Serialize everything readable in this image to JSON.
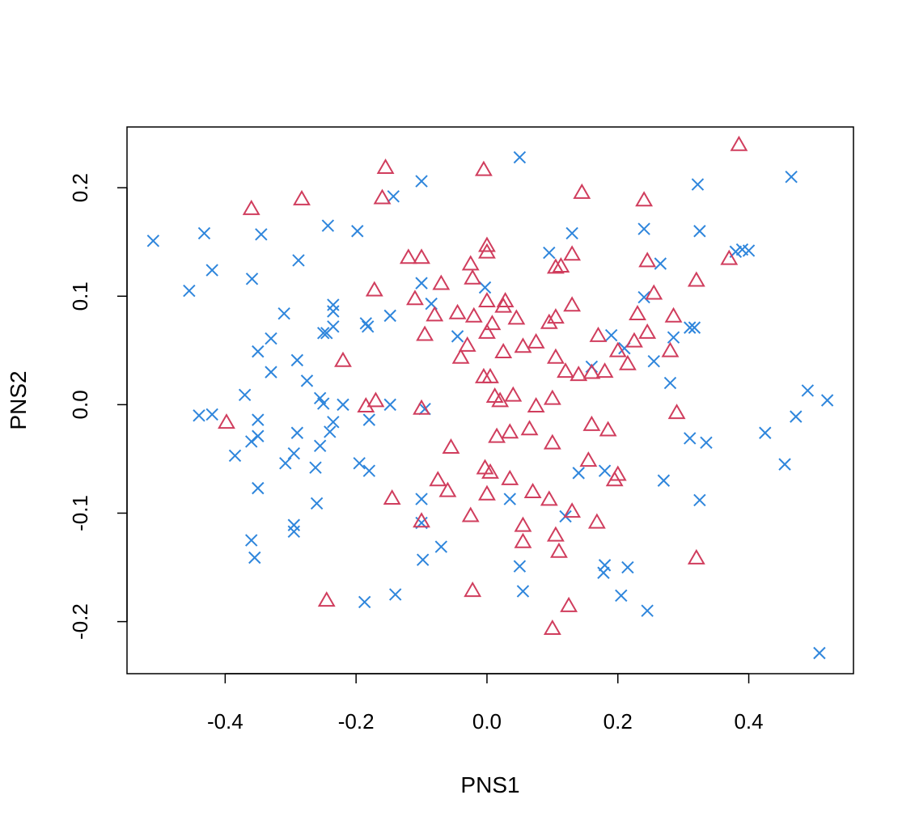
{
  "chart_data": {
    "type": "scatter",
    "title": "",
    "xlabel": "PNS1",
    "ylabel": "PNS2",
    "xlim": [
      -0.55,
      0.56
    ],
    "ylim": [
      -0.248,
      0.256
    ],
    "x_ticks": [
      -0.4,
      -0.2,
      0.0,
      0.2,
      0.4
    ],
    "x_tick_labels": [
      "-0.4",
      "-0.2",
      "0.0",
      "0.2",
      "0.4"
    ],
    "y_ticks": [
      -0.2,
      -0.1,
      0.0,
      0.1,
      0.2
    ],
    "y_tick_labels": [
      "-0.2",
      "-0.1",
      "0.0",
      "0.1",
      "0.2"
    ],
    "grid": false,
    "series": [
      {
        "marker": "x",
        "color": "#2f86dc",
        "points": [
          [
            -0.51,
            0.151
          ],
          [
            -0.455,
            0.105
          ],
          [
            -0.432,
            0.158
          ],
          [
            -0.42,
            0.124
          ],
          [
            -0.359,
            0.116
          ],
          [
            -0.345,
            0.157
          ],
          [
            -0.31,
            0.084
          ],
          [
            -0.288,
            0.133
          ],
          [
            -0.243,
            0.165
          ],
          [
            -0.235,
            0.092
          ],
          [
            -0.235,
            0.086
          ],
          [
            -0.198,
            0.16
          ],
          [
            -0.148,
            0.082
          ],
          [
            -0.143,
            0.192
          ],
          [
            -0.1,
            0.206
          ],
          [
            -0.1,
            0.112
          ],
          [
            -0.085,
            0.093
          ],
          [
            -0.045,
            0.063
          ],
          [
            -0.003,
            0.108
          ],
          [
            0.05,
            0.228
          ],
          [
            0.095,
            0.14
          ],
          [
            0.13,
            0.158
          ],
          [
            0.24,
            0.162
          ],
          [
            0.322,
            0.203
          ],
          [
            0.325,
            0.16
          ],
          [
            0.38,
            0.141
          ],
          [
            0.39,
            0.143
          ],
          [
            0.4,
            0.142
          ],
          [
            0.465,
            0.21
          ],
          [
            -0.245,
            0.066
          ],
          [
            -0.25,
            0.066
          ],
          [
            -0.235,
            0.072
          ],
          [
            -0.185,
            0.075
          ],
          [
            -0.182,
            0.072
          ],
          [
            -0.33,
            0.061
          ],
          [
            -0.35,
            0.049
          ],
          [
            -0.33,
            0.03
          ],
          [
            -0.29,
            0.041
          ],
          [
            -0.275,
            0.022
          ],
          [
            -0.37,
            0.009
          ],
          [
            -0.44,
            -0.01
          ],
          [
            -0.42,
            -0.009
          ],
          [
            -0.385,
            -0.047
          ],
          [
            -0.36,
            -0.034
          ],
          [
            -0.35,
            -0.014
          ],
          [
            -0.35,
            -0.029
          ],
          [
            -0.255,
            0.006
          ],
          [
            -0.25,
            0.001
          ],
          [
            -0.22,
            0.0
          ],
          [
            -0.235,
            -0.016
          ],
          [
            -0.24,
            -0.025
          ],
          [
            -0.29,
            -0.026
          ],
          [
            -0.255,
            -0.038
          ],
          [
            -0.295,
            -0.045
          ],
          [
            -0.308,
            -0.054
          ],
          [
            -0.262,
            -0.058
          ],
          [
            -0.195,
            -0.054
          ],
          [
            -0.18,
            -0.061
          ],
          [
            -0.18,
            -0.014
          ],
          [
            -0.148,
            0.0
          ],
          [
            -0.095,
            -0.004
          ],
          [
            -0.35,
            -0.077
          ],
          [
            -0.26,
            -0.091
          ],
          [
            -0.36,
            -0.125
          ],
          [
            -0.355,
            -0.141
          ],
          [
            -0.295,
            -0.111
          ],
          [
            -0.295,
            -0.117
          ],
          [
            -0.1,
            -0.087
          ],
          [
            -0.1,
            -0.109
          ],
          [
            -0.098,
            -0.143
          ],
          [
            -0.07,
            -0.131
          ],
          [
            -0.187,
            -0.182
          ],
          [
            -0.14,
            -0.175
          ],
          [
            0.035,
            -0.087
          ],
          [
            0.05,
            -0.149
          ],
          [
            0.055,
            -0.172
          ],
          [
            0.12,
            -0.103
          ],
          [
            0.14,
            -0.063
          ],
          [
            0.18,
            -0.061
          ],
          [
            0.18,
            -0.148
          ],
          [
            0.178,
            -0.155
          ],
          [
            0.215,
            -0.15
          ],
          [
            0.205,
            -0.176
          ],
          [
            0.245,
            -0.19
          ],
          [
            0.19,
            0.064
          ],
          [
            0.21,
            0.052
          ],
          [
            0.24,
            0.099
          ],
          [
            0.265,
            0.13
          ],
          [
            0.16,
            0.035
          ],
          [
            0.255,
            0.04
          ],
          [
            0.28,
            0.02
          ],
          [
            0.285,
            0.062
          ],
          [
            0.31,
            0.071
          ],
          [
            0.317,
            0.071
          ],
          [
            0.31,
            -0.031
          ],
          [
            0.335,
            -0.035
          ],
          [
            0.27,
            -0.07
          ],
          [
            0.325,
            -0.088
          ],
          [
            0.425,
            -0.026
          ],
          [
            0.455,
            -0.055
          ],
          [
            0.472,
            -0.011
          ],
          [
            0.49,
            0.013
          ],
          [
            0.52,
            0.004
          ],
          [
            0.508,
            -0.229
          ]
        ]
      },
      {
        "marker": "triangle",
        "color": "#d03d5d",
        "points": [
          [
            -0.36,
            0.18
          ],
          [
            -0.283,
            0.189
          ],
          [
            -0.155,
            0.218
          ],
          [
            -0.16,
            0.19
          ],
          [
            -0.005,
            0.216
          ],
          [
            0.145,
            0.195
          ],
          [
            0.24,
            0.188
          ],
          [
            0.385,
            0.239
          ],
          [
            0.37,
            0.134
          ],
          [
            -0.12,
            0.135
          ],
          [
            -0.1,
            0.135
          ],
          [
            -0.025,
            0.129
          ],
          [
            -0.022,
            0.116
          ],
          [
            0.0,
            0.146
          ],
          [
            0.0,
            0.14
          ],
          [
            0.105,
            0.126
          ],
          [
            0.113,
            0.127
          ],
          [
            0.13,
            0.138
          ],
          [
            0.245,
            0.132
          ],
          [
            0.32,
            0.114
          ],
          [
            -0.172,
            0.105
          ],
          [
            -0.11,
            0.097
          ],
          [
            -0.07,
            0.111
          ],
          [
            -0.08,
            0.082
          ],
          [
            -0.095,
            0.064
          ],
          [
            -0.045,
            0.084
          ],
          [
            -0.02,
            0.081
          ],
          [
            -0.03,
            0.054
          ],
          [
            -0.04,
            0.043
          ],
          [
            0.0,
            0.095
          ],
          [
            0.008,
            0.074
          ],
          [
            0.0,
            0.066
          ],
          [
            0.028,
            0.095
          ],
          [
            0.025,
            0.09
          ],
          [
            0.045,
            0.079
          ],
          [
            0.025,
            0.048
          ],
          [
            0.055,
            0.053
          ],
          [
            0.075,
            0.057
          ],
          [
            0.095,
            0.075
          ],
          [
            0.105,
            0.08
          ],
          [
            0.13,
            0.091
          ],
          [
            0.17,
            0.063
          ],
          [
            0.255,
            0.102
          ],
          [
            0.23,
            0.083
          ],
          [
            0.245,
            0.066
          ],
          [
            0.285,
            0.081
          ],
          [
            0.225,
            0.058
          ],
          [
            0.2,
            0.049
          ],
          [
            0.215,
            0.037
          ],
          [
            0.28,
            0.049
          ],
          [
            0.18,
            0.03
          ],
          [
            0.16,
            0.029
          ],
          [
            0.14,
            0.027
          ],
          [
            0.12,
            0.03
          ],
          [
            0.105,
            0.043
          ],
          [
            -0.22,
            0.04
          ],
          [
            -0.005,
            0.025
          ],
          [
            0.005,
            0.025
          ],
          [
            0.012,
            0.007
          ],
          [
            0.02,
            0.003
          ],
          [
            0.04,
            0.008
          ],
          [
            0.075,
            -0.002
          ],
          [
            0.1,
            0.005
          ],
          [
            -0.185,
            -0.002
          ],
          [
            -0.17,
            0.003
          ],
          [
            -0.1,
            -0.004
          ],
          [
            -0.398,
            -0.017
          ],
          [
            0.015,
            -0.03
          ],
          [
            0.035,
            -0.026
          ],
          [
            0.065,
            -0.023
          ],
          [
            0.16,
            -0.019
          ],
          [
            0.185,
            -0.024
          ],
          [
            0.29,
            -0.008
          ],
          [
            -0.055,
            -0.04
          ],
          [
            -0.003,
            -0.059
          ],
          [
            0.005,
            -0.063
          ],
          [
            0.1,
            -0.036
          ],
          [
            0.155,
            -0.052
          ],
          [
            0.035,
            -0.069
          ],
          [
            -0.075,
            -0.07
          ],
          [
            -0.06,
            -0.08
          ],
          [
            0.0,
            -0.083
          ],
          [
            0.07,
            -0.081
          ],
          [
            0.095,
            -0.088
          ],
          [
            0.195,
            -0.07
          ],
          [
            0.2,
            -0.065
          ],
          [
            -0.145,
            -0.087
          ],
          [
            -0.1,
            -0.108
          ],
          [
            -0.025,
            -0.103
          ],
          [
            0.055,
            -0.112
          ],
          [
            0.055,
            -0.127
          ],
          [
            0.105,
            -0.121
          ],
          [
            0.11,
            -0.136
          ],
          [
            0.13,
            -0.099
          ],
          [
            0.168,
            -0.109
          ],
          [
            0.32,
            -0.142
          ],
          [
            -0.245,
            -0.181
          ],
          [
            -0.022,
            -0.172
          ],
          [
            0.125,
            -0.186
          ],
          [
            0.1,
            -0.207
          ]
        ]
      }
    ]
  }
}
